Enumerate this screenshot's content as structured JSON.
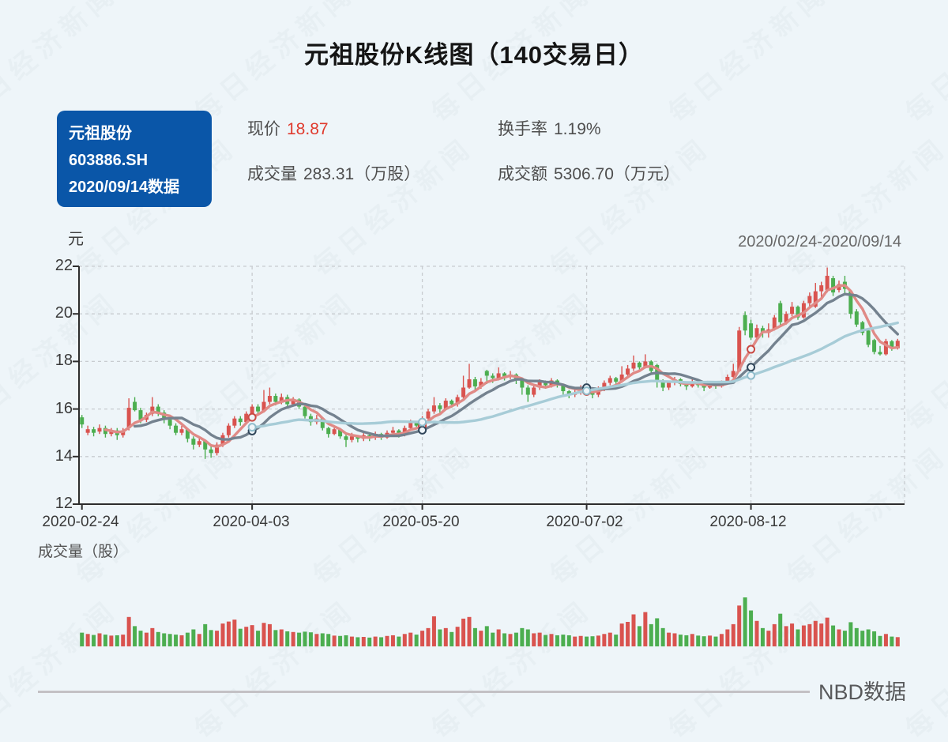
{
  "page": {
    "title": "元祖股份K线图（140交易日）",
    "watermark": "每日经济新闻",
    "footer": "NBD数据"
  },
  "info_card": {
    "name": "元祖股份",
    "code": "603886.SH",
    "date_note": "2020/09/14数据"
  },
  "stats": {
    "price_label": "现价",
    "price_value": "18.87",
    "turnover_label": "换手率",
    "turnover_value": "1.19%",
    "volume_label": "成交量",
    "volume_value": "283.31（万股）",
    "amount_label": "成交额",
    "amount_value": "5306.70（万元）"
  },
  "chart_data": {
    "type": "candlestick",
    "y_unit": "元",
    "range_label": "2020/02/24-2020/09/14",
    "volume_title": "成交量（股）",
    "ylim": [
      12,
      22
    ],
    "y_tick_labels": [
      "22",
      "20",
      "18",
      "16",
      "14",
      "12"
    ],
    "x_tick_labels": [
      "2020-02-24",
      "2020-04-03",
      "2020-05-20",
      "2020-07-02",
      "2020-08-12"
    ],
    "x_tick_days": [
      0,
      29,
      58,
      86,
      114
    ],
    "grid": true,
    "up_color": "#d9534f",
    "down_color": "#4cae50",
    "ma_lines": [
      {
        "name": "MA5",
        "color": "#e08a86",
        "ring": "#c94a44",
        "period": 5
      },
      {
        "name": "MA10",
        "color": "#74828f",
        "ring": "#31465a",
        "period": 10
      },
      {
        "name": "MA30",
        "color": "#a7ccd7",
        "ring": "#8fbccb",
        "period": 30
      }
    ],
    "marker_days": [
      29,
      58,
      86,
      114
    ],
    "candles_format": [
      "open",
      "high",
      "low",
      "close",
      "volume_wanshou"
    ],
    "candles": [
      [
        15.65,
        15.75,
        15.2,
        15.35,
        420
      ],
      [
        15.0,
        15.3,
        14.9,
        15.15,
        380
      ],
      [
        15.15,
        15.25,
        14.85,
        15.0,
        350
      ],
      [
        15.05,
        15.35,
        14.95,
        15.2,
        400
      ],
      [
        15.2,
        15.3,
        14.8,
        14.95,
        360
      ],
      [
        14.95,
        15.2,
        14.85,
        15.1,
        330
      ],
      [
        15.1,
        15.2,
        14.7,
        14.9,
        340
      ],
      [
        14.9,
        15.2,
        14.8,
        15.1,
        360
      ],
      [
        15.2,
        16.45,
        15.1,
        16.05,
        900
      ],
      [
        16.3,
        16.5,
        15.9,
        15.95,
        620
      ],
      [
        15.95,
        16.05,
        15.4,
        15.55,
        480
      ],
      [
        15.55,
        15.85,
        15.45,
        15.75,
        420
      ],
      [
        15.8,
        16.5,
        15.7,
        16.1,
        560
      ],
      [
        16.1,
        16.2,
        15.7,
        15.85,
        440
      ],
      [
        15.85,
        15.95,
        15.4,
        15.55,
        400
      ],
      [
        15.55,
        15.65,
        15.15,
        15.3,
        380
      ],
      [
        15.3,
        15.4,
        14.9,
        15.0,
        360
      ],
      [
        15.0,
        15.3,
        14.9,
        15.15,
        340
      ],
      [
        15.15,
        15.2,
        14.6,
        14.75,
        420
      ],
      [
        14.75,
        14.85,
        14.3,
        14.5,
        520
      ],
      [
        14.5,
        14.8,
        14.4,
        14.65,
        380
      ],
      [
        14.65,
        14.7,
        13.9,
        14.3,
        680
      ],
      [
        14.3,
        14.45,
        13.95,
        14.15,
        500
      ],
      [
        14.15,
        14.6,
        14.05,
        14.5,
        480
      ],
      [
        14.5,
        15.0,
        14.4,
        14.9,
        700
      ],
      [
        14.9,
        15.4,
        14.8,
        15.3,
        760
      ],
      [
        15.3,
        15.7,
        15.2,
        15.6,
        820
      ],
      [
        15.6,
        15.7,
        15.3,
        15.45,
        540
      ],
      [
        15.45,
        15.9,
        15.35,
        15.8,
        600
      ],
      [
        15.8,
        16.2,
        15.7,
        16.1,
        650
      ],
      [
        16.1,
        16.2,
        15.75,
        15.9,
        480
      ],
      [
        15.9,
        16.8,
        15.85,
        16.3,
        720
      ],
      [
        16.3,
        16.9,
        16.2,
        16.55,
        680
      ],
      [
        16.55,
        16.65,
        16.15,
        16.3,
        500
      ],
      [
        16.3,
        16.65,
        16.2,
        16.5,
        520
      ],
      [
        16.5,
        16.6,
        16.1,
        16.2,
        460
      ],
      [
        16.2,
        16.5,
        16.1,
        16.4,
        440
      ],
      [
        16.4,
        16.45,
        16.0,
        16.1,
        420
      ],
      [
        16.1,
        16.15,
        15.6,
        15.7,
        450
      ],
      [
        15.7,
        15.8,
        15.3,
        15.45,
        430
      ],
      [
        15.45,
        15.75,
        15.35,
        15.6,
        380
      ],
      [
        15.6,
        15.65,
        15.1,
        15.2,
        400
      ],
      [
        15.2,
        15.25,
        14.8,
        14.95,
        380
      ],
      [
        14.95,
        15.3,
        14.9,
        15.15,
        330
      ],
      [
        15.15,
        15.2,
        14.75,
        14.85,
        320
      ],
      [
        14.85,
        14.95,
        14.4,
        14.7,
        340
      ],
      [
        14.7,
        15.0,
        14.6,
        14.85,
        300
      ],
      [
        14.85,
        14.9,
        14.6,
        14.75,
        280
      ],
      [
        14.75,
        15.0,
        14.65,
        14.9,
        290
      ],
      [
        14.9,
        14.95,
        14.65,
        14.8,
        270
      ],
      [
        14.8,
        15.05,
        14.7,
        14.95,
        300
      ],
      [
        14.95,
        15.0,
        14.7,
        14.8,
        280
      ],
      [
        14.8,
        15.1,
        14.75,
        15.0,
        320
      ],
      [
        15.0,
        15.25,
        14.9,
        15.1,
        340
      ],
      [
        15.1,
        15.15,
        14.8,
        14.9,
        300
      ],
      [
        14.9,
        15.3,
        14.85,
        15.2,
        380
      ],
      [
        15.2,
        15.55,
        15.1,
        15.45,
        420
      ],
      [
        15.45,
        15.5,
        15.15,
        15.3,
        360
      ],
      [
        15.3,
        15.7,
        15.25,
        15.6,
        480
      ],
      [
        15.6,
        16.0,
        15.5,
        15.9,
        560
      ],
      [
        15.9,
        16.5,
        15.8,
        16.15,
        920
      ],
      [
        16.15,
        16.25,
        15.85,
        16.0,
        520
      ],
      [
        16.0,
        16.45,
        15.95,
        16.35,
        560
      ],
      [
        16.35,
        16.4,
        16.05,
        16.2,
        440
      ],
      [
        16.2,
        16.6,
        16.1,
        16.5,
        600
      ],
      [
        16.5,
        17.4,
        16.45,
        16.9,
        850
      ],
      [
        16.9,
        17.9,
        16.85,
        17.25,
        900
      ],
      [
        17.25,
        17.35,
        16.8,
        16.95,
        560
      ],
      [
        16.95,
        17.3,
        16.85,
        17.15,
        480
      ],
      [
        17.6,
        17.65,
        17.05,
        17.4,
        620
      ],
      [
        17.4,
        17.5,
        17.1,
        17.3,
        420
      ],
      [
        17.3,
        17.75,
        17.2,
        17.5,
        520
      ],
      [
        17.5,
        17.55,
        17.2,
        17.35,
        400
      ],
      [
        17.35,
        17.6,
        17.25,
        17.45,
        380
      ],
      [
        17.45,
        17.5,
        17.05,
        17.2,
        420
      ],
      [
        17.2,
        17.25,
        16.6,
        16.9,
        560
      ],
      [
        16.9,
        17.0,
        16.3,
        16.6,
        520
      ],
      [
        16.6,
        17.0,
        16.5,
        16.9,
        400
      ],
      [
        16.9,
        17.25,
        16.8,
        17.15,
        420
      ],
      [
        17.15,
        17.2,
        16.85,
        17.0,
        350
      ],
      [
        17.0,
        17.3,
        16.9,
        17.2,
        380
      ],
      [
        17.2,
        17.25,
        16.9,
        17.0,
        340
      ],
      [
        17.0,
        17.05,
        16.6,
        16.75,
        360
      ],
      [
        16.75,
        16.8,
        16.45,
        16.6,
        340
      ],
      [
        16.6,
        16.85,
        16.5,
        16.7,
        300
      ],
      [
        16.7,
        17.0,
        16.6,
        16.9,
        320
      ],
      [
        16.9,
        16.95,
        16.6,
        16.75,
        300
      ],
      [
        16.75,
        16.8,
        16.45,
        16.6,
        310
      ],
      [
        16.6,
        16.95,
        16.5,
        16.85,
        330
      ],
      [
        16.85,
        17.2,
        16.75,
        17.1,
        380
      ],
      [
        17.1,
        17.4,
        17.0,
        17.3,
        420
      ],
      [
        17.3,
        17.35,
        17.0,
        17.15,
        360
      ],
      [
        17.15,
        17.8,
        17.1,
        17.45,
        700
      ],
      [
        17.45,
        17.85,
        17.35,
        17.7,
        750
      ],
      [
        17.7,
        18.25,
        17.6,
        17.95,
        980
      ],
      [
        17.95,
        18.0,
        17.6,
        17.75,
        620
      ],
      [
        17.75,
        18.3,
        17.7,
        18.0,
        1050
      ],
      [
        18.0,
        18.05,
        17.5,
        17.6,
        680
      ],
      [
        17.85,
        17.9,
        16.9,
        17.2,
        860
      ],
      [
        17.2,
        17.25,
        16.75,
        16.9,
        560
      ],
      [
        16.9,
        17.2,
        16.8,
        17.1,
        420
      ],
      [
        17.1,
        17.35,
        17.0,
        17.25,
        400
      ],
      [
        17.25,
        17.3,
        16.95,
        17.05,
        360
      ],
      [
        17.05,
        17.1,
        16.8,
        16.95,
        340
      ],
      [
        16.95,
        17.25,
        16.9,
        17.15,
        380
      ],
      [
        17.15,
        17.2,
        16.9,
        17.0,
        330
      ],
      [
        17.0,
        17.05,
        16.75,
        16.9,
        310
      ],
      [
        16.9,
        17.15,
        16.85,
        17.05,
        330
      ],
      [
        17.05,
        17.1,
        16.85,
        16.95,
        300
      ],
      [
        16.95,
        17.2,
        16.9,
        17.1,
        380
      ],
      [
        17.1,
        17.45,
        17.05,
        17.35,
        520
      ],
      [
        17.35,
        17.9,
        17.3,
        17.6,
        680
      ],
      [
        17.6,
        19.45,
        17.55,
        19.3,
        1250
      ],
      [
        19.95,
        20.1,
        19.1,
        19.3,
        1500
      ],
      [
        19.6,
        19.75,
        18.9,
        19.0,
        1100
      ],
      [
        19.0,
        19.55,
        18.95,
        19.4,
        780
      ],
      [
        19.4,
        19.5,
        19.0,
        19.2,
        560
      ],
      [
        19.2,
        19.6,
        19.0,
        19.35,
        480
      ],
      [
        19.35,
        19.95,
        19.3,
        19.85,
        680
      ],
      [
        20.45,
        20.55,
        19.5,
        19.65,
        1000
      ],
      [
        19.65,
        20.1,
        19.55,
        20.0,
        620
      ],
      [
        20.0,
        20.5,
        19.9,
        20.3,
        700
      ],
      [
        20.3,
        20.35,
        19.75,
        19.85,
        520
      ],
      [
        19.85,
        20.55,
        19.8,
        20.45,
        640
      ],
      [
        20.45,
        20.9,
        20.3,
        20.75,
        680
      ],
      [
        20.3,
        21.3,
        20.25,
        20.95,
        780
      ],
      [
        20.95,
        21.35,
        20.65,
        21.2,
        700
      ],
      [
        21.0,
        21.95,
        20.9,
        21.6,
        880
      ],
      [
        21.5,
        21.6,
        20.75,
        20.9,
        640
      ],
      [
        21.0,
        21.4,
        20.9,
        21.25,
        520
      ],
      [
        21.35,
        21.6,
        20.8,
        21.05,
        480
      ],
      [
        20.95,
        21.0,
        19.8,
        20.0,
        740
      ],
      [
        20.1,
        20.2,
        19.45,
        19.55,
        560
      ],
      [
        19.65,
        19.7,
        19.1,
        19.2,
        480
      ],
      [
        19.3,
        19.35,
        18.6,
        18.7,
        520
      ],
      [
        18.9,
        18.95,
        18.3,
        18.4,
        460
      ],
      [
        18.4,
        18.65,
        18.25,
        18.3,
        320
      ],
      [
        18.3,
        18.95,
        18.25,
        18.85,
        380
      ],
      [
        18.85,
        18.9,
        18.45,
        18.55,
        300
      ],
      [
        18.55,
        18.95,
        18.5,
        18.87,
        283
      ]
    ]
  }
}
